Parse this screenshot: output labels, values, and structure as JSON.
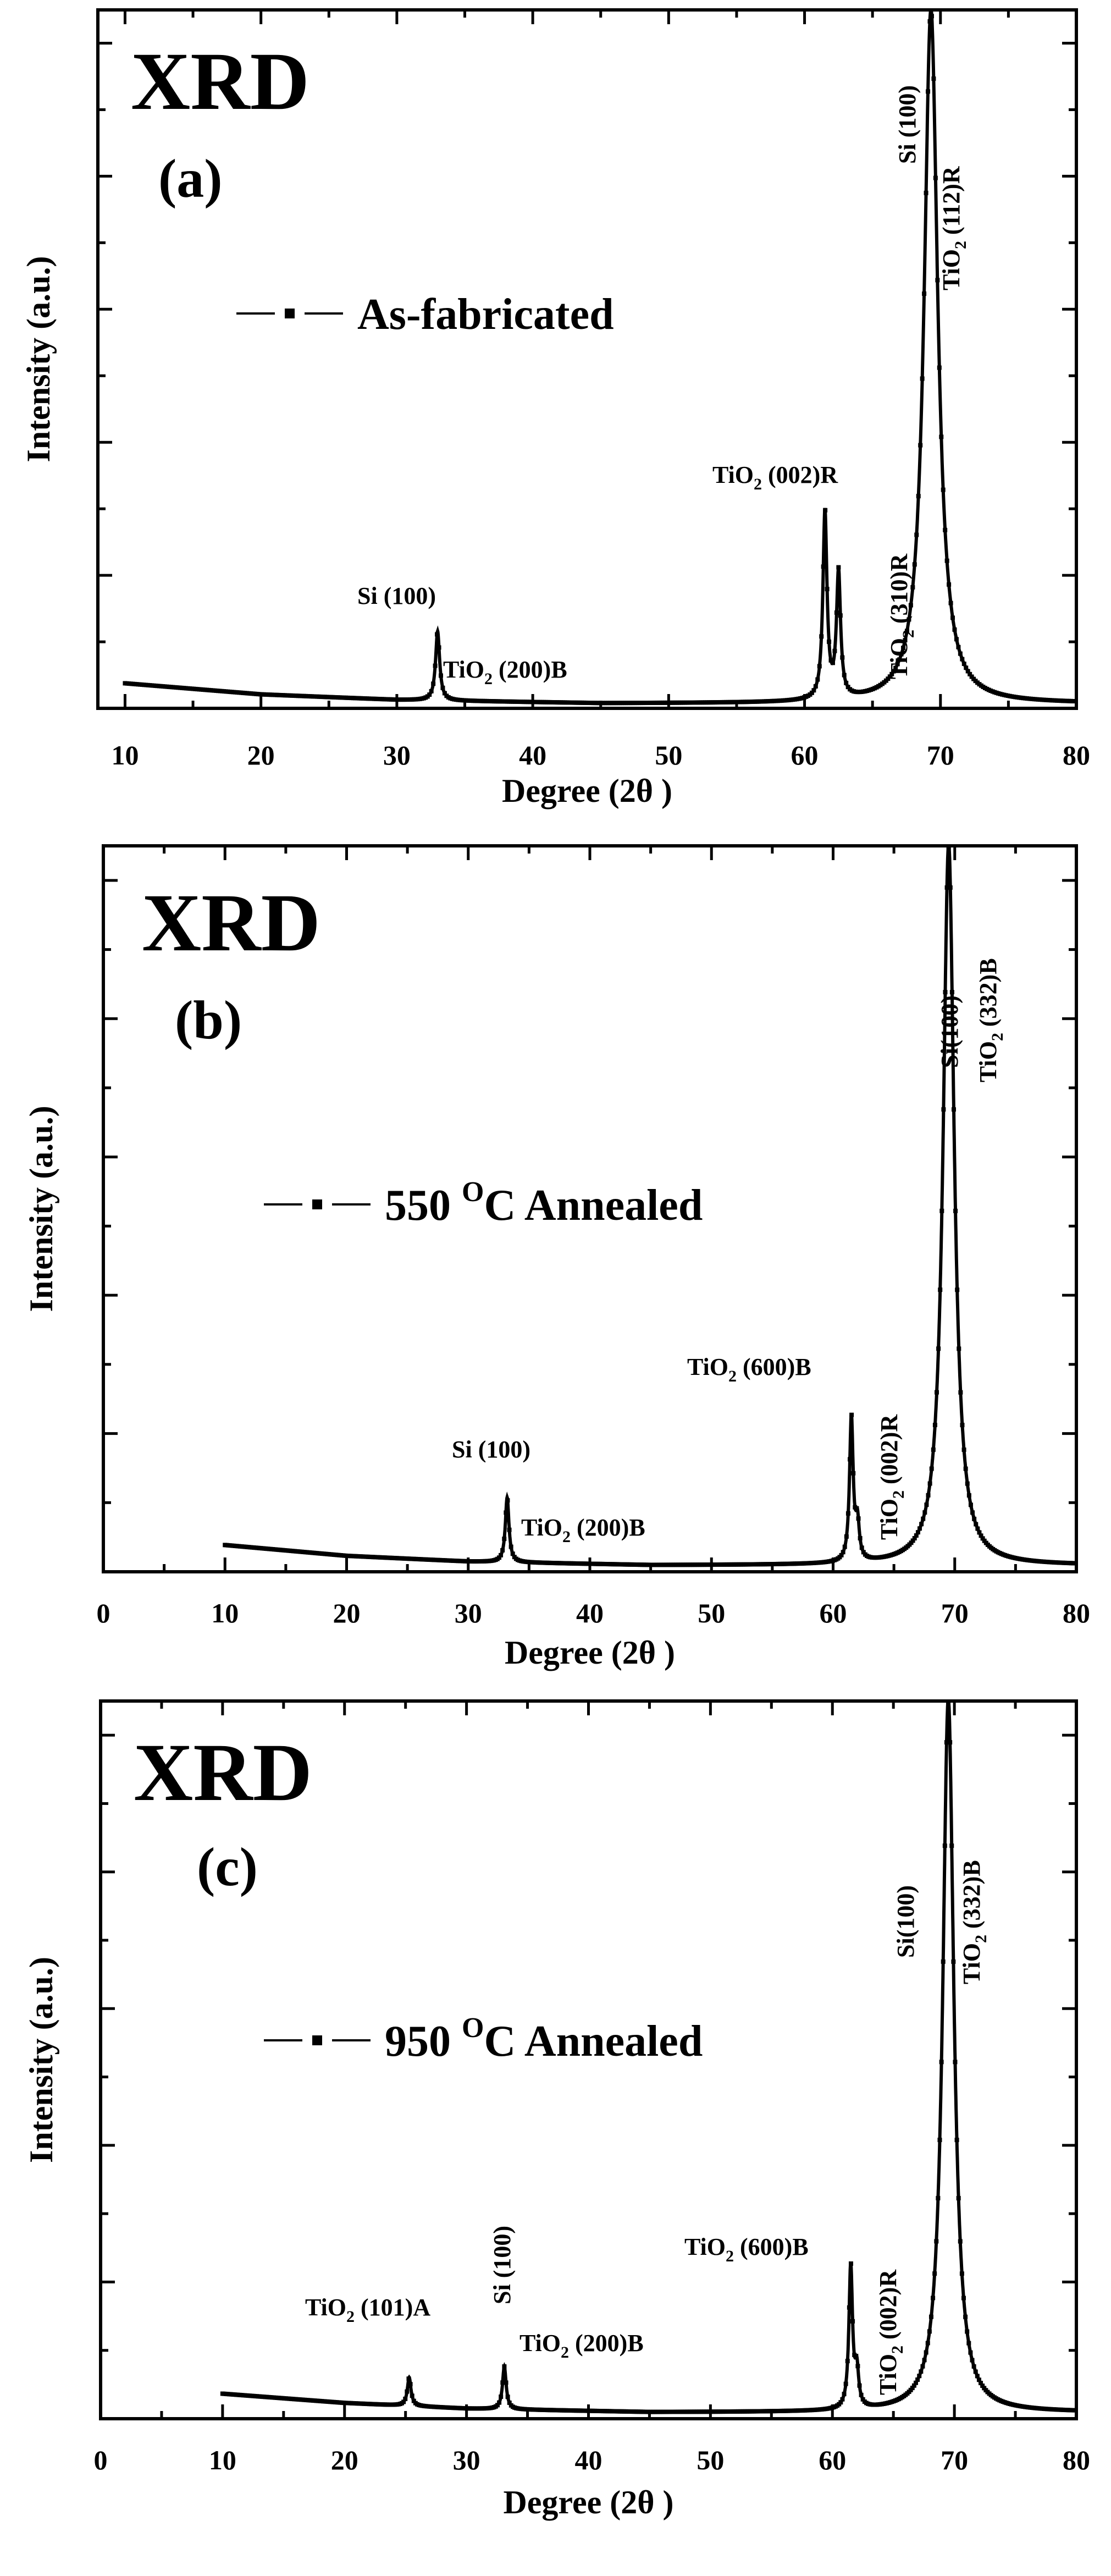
{
  "chart_data": [
    {
      "type": "line",
      "title": "XRD",
      "panel_label": "(a)",
      "legend": "As-fabricated",
      "xlabel": "Degree (2θ )",
      "ylabel": "Intensity (a.u.)",
      "xlim": [
        8,
        80
      ],
      "ylim": [
        0,
        1
      ],
      "x_ticks": [
        "10",
        "20",
        "30",
        "40",
        "50",
        "60",
        "70",
        "80"
      ],
      "x_tick_values": [
        10,
        20,
        30,
        40,
        50,
        60,
        70,
        80
      ],
      "baseline": [
        [
          10,
          0.036
        ],
        [
          20,
          0.02
        ],
        [
          30,
          0.012
        ],
        [
          45,
          0.007
        ],
        [
          60,
          0.007
        ]
      ],
      "peaks": [
        {
          "x": 33.0,
          "height": 0.1,
          "width": 0.18
        },
        {
          "x": 61.5,
          "height": 0.27,
          "width": 0.18
        },
        {
          "x": 62.5,
          "height": 0.18,
          "width": 0.18
        },
        {
          "x": 69.3,
          "height": 1.0,
          "width": 0.6
        }
      ],
      "annotations": [
        {
          "text": "Si (100)"
        },
        {
          "text": "TiO",
          "sub": "2",
          "rest": " (200)B"
        },
        {
          "text": "TiO",
          "sub": "2",
          "rest": " (002)R"
        },
        {
          "text": "TiO",
          "sub": "2",
          "rest": " (310)R"
        },
        {
          "text": "Si (100)"
        },
        {
          "text": "TiO",
          "sub": "2",
          "rest": " (112)R"
        }
      ]
    },
    {
      "type": "line",
      "title": "XRD",
      "panel_label": "(b)",
      "legend": "550 °C Annealed",
      "legend_parts": {
        "pre": "550 ",
        "sup": "O",
        "post": "C Annealed"
      },
      "xlabel": "Degree (2θ )",
      "ylabel": "Intensity (a.u.)",
      "xlim": [
        0,
        80
      ],
      "ylim": [
        0,
        1
      ],
      "x_ticks": [
        "0",
        "10",
        "20",
        "30",
        "40",
        "50",
        "60",
        "70",
        "80"
      ],
      "x_tick_values": [
        0,
        10,
        20,
        30,
        40,
        50,
        60,
        70,
        80
      ],
      "baseline": [
        [
          10,
          0.037
        ],
        [
          20,
          0.022
        ],
        [
          30,
          0.014
        ],
        [
          45,
          0.009
        ],
        [
          60,
          0.009
        ]
      ],
      "peaks": [
        {
          "x": 33.2,
          "height": 0.09,
          "width": 0.18
        },
        {
          "x": 61.5,
          "height": 0.2,
          "width": 0.18
        },
        {
          "x": 62.0,
          "height": 0.05,
          "width": 0.18
        },
        {
          "x": 69.5,
          "height": 1.0,
          "width": 0.55
        }
      ],
      "annotations": [
        {
          "text": "Si (100)"
        },
        {
          "text": "TiO",
          "sub": "2",
          "rest": " (200)B"
        },
        {
          "text": "TiO",
          "sub": "2",
          "rest": " (600)B"
        },
        {
          "text": "TiO",
          "sub": "2",
          "rest": " (002)R"
        },
        {
          "text": "Si(100)"
        },
        {
          "text": "TiO",
          "sub": "2",
          "rest": " (332)B"
        }
      ]
    },
    {
      "type": "line",
      "title": "XRD",
      "panel_label": "(c)",
      "legend": "950 °C Annealed",
      "legend_parts": {
        "pre": "950 ",
        "sup": "O",
        "post": "C Annealed"
      },
      "xlabel": "Degree (2θ )",
      "ylabel": "Intensity (a.u.)",
      "xlim": [
        0,
        80
      ],
      "ylim": [
        0,
        1
      ],
      "x_ticks": [
        "0",
        "10",
        "20",
        "30",
        "40",
        "50",
        "60",
        "70",
        "80"
      ],
      "x_tick_values": [
        0,
        10,
        20,
        30,
        40,
        50,
        60,
        70,
        80
      ],
      "baseline": [
        [
          10,
          0.035
        ],
        [
          20,
          0.022
        ],
        [
          30,
          0.014
        ],
        [
          45,
          0.009
        ],
        [
          60,
          0.009
        ]
      ],
      "peaks": [
        {
          "x": 25.3,
          "height": 0.04,
          "width": 0.18
        },
        {
          "x": 33.1,
          "height": 0.06,
          "width": 0.18
        },
        {
          "x": 61.5,
          "height": 0.2,
          "width": 0.18
        },
        {
          "x": 62.0,
          "height": 0.05,
          "width": 0.18
        },
        {
          "x": 69.5,
          "height": 1.0,
          "width": 0.55
        }
      ],
      "annotations": [
        {
          "text": "TiO",
          "sub": "2",
          "rest": " (101)A"
        },
        {
          "text": "Si (100)"
        },
        {
          "text": "TiO",
          "sub": "2",
          "rest": " (200)B"
        },
        {
          "text": "TiO",
          "sub": "2",
          "rest": " (600)B"
        },
        {
          "text": "TiO",
          "sub": "2",
          "rest": " (002)R"
        },
        {
          "text": "Si(100)"
        },
        {
          "text": "TiO",
          "sub": "2",
          "rest": " (332)B"
        }
      ]
    }
  ]
}
